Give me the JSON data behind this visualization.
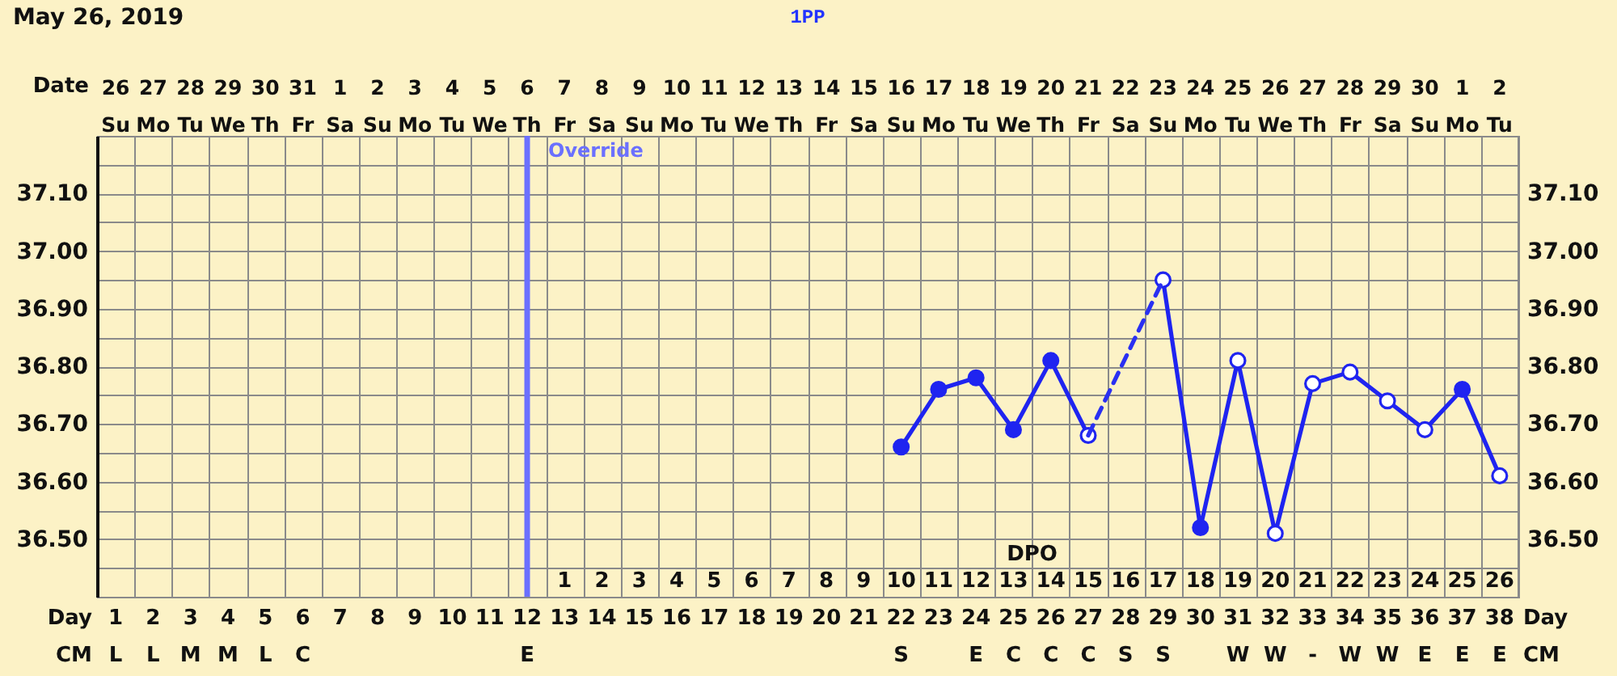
{
  "chart_data": {
    "type": "line",
    "title": "May 26, 2019",
    "subtitle": "1PP",
    "categories": [
      "\n1\nL",
      "\n2\nL",
      "\n3\nM",
      "\n4\nM",
      "\n5\nL",
      "\n6\nC",
      "\n7\n",
      "\n8\n",
      "\n9\n",
      "\n10\n",
      "\n11\n",
      "\n12\nE",
      "1\n13\n",
      "2\n14\n",
      "3\n15\n",
      "4\n16\n",
      "5\n17\n",
      "6\n18\n",
      "7\n19\n",
      "8\n20\n",
      "9\n21\n",
      "10\n22\nS",
      "11\n23\n",
      "12\n24\nE",
      "13\n25\nC",
      "14\n26\nC",
      "15\n27\nC",
      "16\n28\nS",
      "17\n29\nS",
      "18\n30\n",
      "19\n31\nW",
      "20\n32\nW",
      "21\n33\n-",
      "22\n34\nW",
      "23\n35\nW",
      "24\n36\nE",
      "25\n37\nE",
      "26\n38\nE"
    ],
    "xlabel": "Day\nCM",
    "annotations": [
      "DPO"
    ],
    "x2label": "Date",
    "x2lim": [
      "2019-05-25T12:00",
      "2019-07-02T12:00"
    ],
    "x2ticks": [
      {
        "value": "2019-05-26",
        "label": "26\nSu"
      },
      {
        "value": "2019-05-27",
        "label": "27\nMo"
      },
      {
        "value": "2019-05-28",
        "label": "28\nTu"
      },
      {
        "value": "2019-05-29",
        "label": "29\nWe"
      },
      {
        "value": "2019-05-30",
        "label": "30\nTh"
      },
      {
        "value": "2019-05-31",
        "label": "31\nFr"
      },
      {
        "value": "2019-06-01",
        "label": "1\nSa"
      },
      {
        "value": "2019-06-02",
        "label": "2\nSu"
      },
      {
        "value": "2019-06-03",
        "label": "3\nMo"
      },
      {
        "value": "2019-06-04",
        "label": "4\nTu"
      },
      {
        "value": "2019-06-05",
        "label": "5\nWe"
      },
      {
        "value": "2019-06-06",
        "label": "6\nTh"
      },
      {
        "value": "2019-06-07",
        "label": "7\nFr"
      },
      {
        "value": "2019-06-08",
        "label": "8\nSa"
      },
      {
        "value": "2019-06-09",
        "label": "9\nSu"
      },
      {
        "value": "2019-06-10",
        "label": "10\nMo"
      },
      {
        "value": "2019-06-11",
        "label": "11\nTu"
      },
      {
        "value": "2019-06-12",
        "label": "12\nWe"
      },
      {
        "value": "2019-06-13",
        "label": "13\nTh"
      },
      {
        "value": "2019-06-14",
        "label": "14\nFr"
      },
      {
        "value": "2019-06-15",
        "label": "15\nSa"
      },
      {
        "value": "2019-06-16",
        "label": "16\nSu"
      },
      {
        "value": "2019-06-17",
        "label": "17\nMo"
      },
      {
        "value": "2019-06-18",
        "label": "18\nTu"
      },
      {
        "value": "2019-06-19",
        "label": "19\nWe"
      },
      {
        "value": "2019-06-20",
        "label": "20\nTh"
      },
      {
        "value": "2019-06-21",
        "label": "21\nFr"
      },
      {
        "value": "2019-06-22",
        "label": "22\nSa"
      },
      {
        "value": "2019-06-23",
        "label": "23\nSu"
      },
      {
        "value": "2019-06-24",
        "label": "24\nMo"
      },
      {
        "value": "2019-06-25",
        "label": "25\nTu"
      },
      {
        "value": "2019-06-26",
        "label": "26\nWe"
      },
      {
        "value": "2019-06-27",
        "label": "27\nTh"
      },
      {
        "value": "2019-06-28",
        "label": "28\nFr"
      },
      {
        "value": "2019-06-29",
        "label": "29\nSa"
      },
      {
        "value": "2019-06-30",
        "label": "30\nSu"
      },
      {
        "value": "2019-07-01",
        "label": "1\nMo"
      },
      {
        "value": "2019-07-02",
        "label": "2\nTu"
      }
    ],
    "ylim": [
      36.4,
      37.2
    ],
    "yticks": [
      {
        "value": 36.45,
        "label": null
      },
      {
        "value": 36.5,
        "label": "36.50"
      },
      {
        "value": 36.55,
        "label": null
      },
      {
        "value": 36.6,
        "label": "36.60"
      },
      {
        "value": 36.65,
        "label": null
      },
      {
        "value": 36.7,
        "label": "36.70"
      },
      {
        "value": 36.75,
        "label": null
      },
      {
        "value": 36.8,
        "label": "36.80"
      },
      {
        "value": 36.85,
        "label": null
      },
      {
        "value": 36.9,
        "label": "36.90"
      },
      {
        "value": 36.95,
        "label": null
      },
      {
        "value": 37.0,
        "label": "37.00"
      },
      {
        "value": 37.05,
        "label": null
      },
      {
        "value": 37.1,
        "label": "37.10"
      },
      {
        "value": 37.15,
        "label": null
      }
    ],
    "y2lim": [
      36.4,
      37.2
    ],
    "y2ticks": [
      {
        "value": 36.45,
        "label": null
      },
      {
        "value": 36.5,
        "label": "36.50"
      },
      {
        "value": 36.55,
        "label": null
      },
      {
        "value": 36.6,
        "label": "36.60"
      },
      {
        "value": 36.65,
        "label": null
      },
      {
        "value": 36.7,
        "label": "36.70"
      },
      {
        "value": 36.75,
        "label": null
      },
      {
        "value": 36.8,
        "label": "36.80"
      },
      {
        "value": 36.85,
        "label": null
      },
      {
        "value": 36.9,
        "label": "36.90"
      },
      {
        "value": 36.95,
        "label": null
      },
      {
        "value": 37.0,
        "label": "37.00"
      },
      {
        "value": 37.05,
        "label": null
      },
      {
        "value": 37.1,
        "label": "37.10"
      },
      {
        "value": 37.15,
        "label": null
      }
    ],
    "grid": true,
    "ref_lines": [
      {
        "axis": "x",
        "value": "\n12\nE",
        "label": "Override",
        "color": "#6b70ff"
      }
    ],
    "series": [
      {
        "color": "#1f24f0",
        "marker": "circle",
        "line_style": "solid",
        "values": [
          null,
          null,
          null,
          null,
          null,
          null,
          null,
          null,
          null,
          null,
          null,
          null,
          null,
          null,
          null,
          null,
          null,
          null,
          null,
          null,
          null,
          36.66,
          36.76,
          36.78,
          36.69,
          36.81,
          36.68,
          null,
          36.95,
          36.52,
          36.81,
          36.51,
          36.77,
          36.79,
          36.74,
          36.69,
          36.76,
          36.61
        ],
        "colors": [
          null,
          null,
          null,
          null,
          null,
          null,
          null,
          null,
          null,
          null,
          null,
          null,
          null,
          null,
          null,
          null,
          null,
          null,
          null,
          null,
          null,
          "#1f24f0",
          "#1f24f0",
          "#1f24f0",
          "#1f24f0",
          "#1f24f0",
          "#ffffff",
          null,
          "#ffffff",
          "#1f24f0",
          "#ffffff",
          "#ffffff",
          "#ffffff",
          "#ffffff",
          "#ffffff",
          "#ffffff",
          "#1f24f0",
          "#ffffff"
        ]
      },
      {
        "color": "#2a30f2",
        "marker": "none",
        "line_style": "dashed",
        "x": [
          "15\n27\nC",
          "17\n29\nS"
        ],
        "values": [
          36.68,
          36.95
        ]
      }
    ]
  }
}
